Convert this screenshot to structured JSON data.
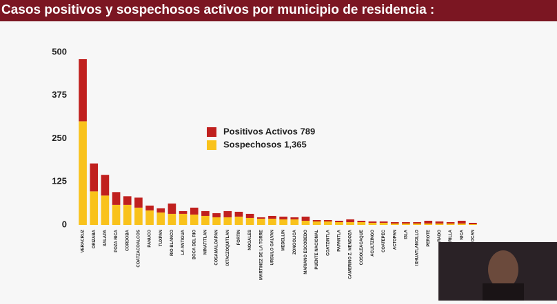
{
  "chart_data": {
    "type": "stacked_bar",
    "title": "Casos positivos y sospechosos activos por municipio de residencia :",
    "categories": [
      "VERACRUZ",
      "ORIZABA",
      "XALAPA",
      "POZA RICA",
      "CORDOBA",
      "COATZACOALCOS",
      "PANUCO",
      "TUXPAN",
      "RIO BLANCO",
      "LA ANTIGUA",
      "BOCA DEL RIO",
      "MINATITLAN",
      "COSAMALOAPAN",
      "IXTACZOQUITLAN",
      "FORTIN",
      "NOGALES",
      "MARTINEZ DE LA TORRE",
      "URSULO GALVAN",
      "MEDELLIN",
      "ZONGOLICA",
      "MARIANO ESCOBEDO",
      "PUENTE NACIONAL",
      "COATZINTLA",
      "PAPANTLA",
      "CAMERINO Z. MENDOZA",
      "COSOLEACAQUE",
      "ACULTZINGO",
      "COATEPEC",
      "ACTOPAN",
      "ISLA",
      "IXHUATLANCILLO",
      "PEROTE",
      "RADO",
      "RILLA",
      "NICA",
      "OCAN"
    ],
    "series": [
      {
        "name": "Positivos Activos 789",
        "color": "#c0201e",
        "values": [
          180,
          81,
          60,
          37,
          25,
          29,
          14,
          12,
          30,
          8,
          20,
          14,
          12,
          18,
          14,
          12,
          4,
          8,
          8,
          6,
          12,
          4,
          4,
          4,
          8,
          4,
          4,
          4,
          4,
          4,
          4,
          8,
          6,
          4,
          8,
          4
        ]
      },
      {
        "name": "Sospechosos 1,365",
        "color": "#f9c21b",
        "values": [
          300,
          97,
          85,
          58,
          58,
          50,
          42,
          36,
          32,
          32,
          30,
          26,
          22,
          22,
          24,
          20,
          18,
          18,
          16,
          16,
          12,
          10,
          10,
          8,
          8,
          8,
          6,
          6,
          4,
          4,
          4,
          4,
          4,
          4,
          4,
          2
        ]
      }
    ],
    "ylim": [
      0,
      500
    ],
    "yticks": [
      0,
      125,
      250,
      375,
      500
    ]
  }
}
